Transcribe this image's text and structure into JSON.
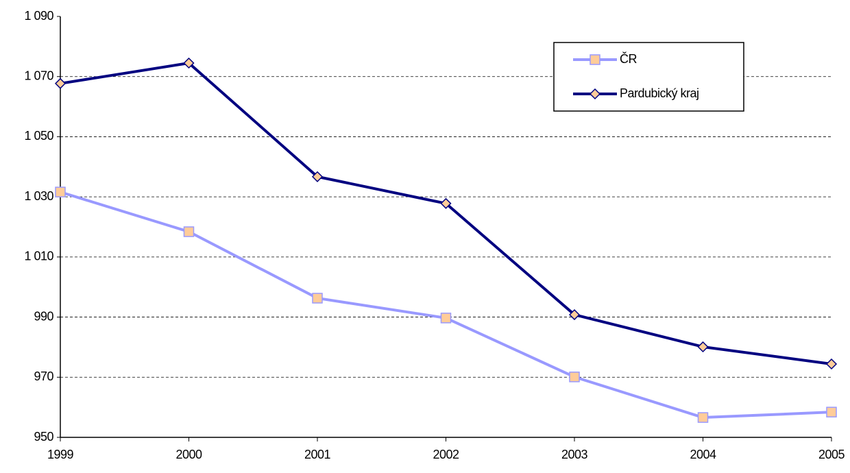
{
  "chart_data": {
    "type": "line",
    "categories": [
      "1999",
      "2000",
      "2001",
      "2002",
      "2003",
      "2004",
      "2005"
    ],
    "series": [
      {
        "name": "ČR",
        "color": "#9999ff",
        "marker": "square",
        "values": [
          1031.6,
          1018.4,
          996.3,
          989.7,
          970.1,
          956.6,
          958.4
        ]
      },
      {
        "name": "Pardubický kraj",
        "color": "#000080",
        "marker": "diamond",
        "values": [
          1067.7,
          1074.5,
          1036.7,
          1027.8,
          990.8,
          980.1,
          974.4
        ]
      }
    ],
    "ylim": [
      950,
      1090
    ],
    "yticks": [
      950,
      970,
      990,
      {
        "value": 1010,
        "label": "1 010"
      },
      {
        "value": 1030,
        "label": "1 030"
      },
      {
        "value": 1050,
        "label": "1 050"
      },
      {
        "value": 1070,
        "label": "1 070"
      },
      {
        "value": 1090,
        "label": "1 090"
      }
    ],
    "grid": true,
    "legend": "upper right"
  }
}
